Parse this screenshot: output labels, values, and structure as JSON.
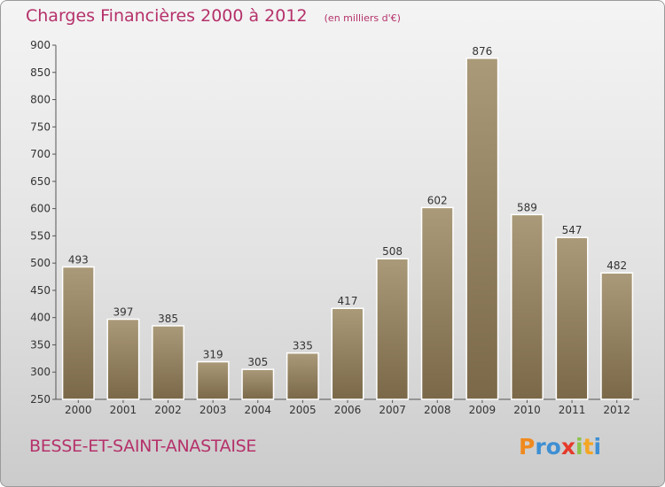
{
  "title": "Charges Financières 2000 à 2012",
  "unit": "(en milliers d'€)",
  "commune": "BESSE-ET-SAINT-ANASTAISE",
  "logo": {
    "letters": [
      "P",
      "r",
      "o",
      "x",
      "i",
      "t",
      "i"
    ],
    "colors": [
      "#f08a1e",
      "#3e8fd3",
      "#3e8fd3",
      "#e53a2a",
      "#8bc34a",
      "#f5a623",
      "#3e8fd3"
    ]
  },
  "colors": {
    "accent": "#b5316a",
    "bar_top": "#aa9a79",
    "bar_bottom": "#7a6848"
  },
  "chart_data": {
    "type": "bar",
    "categories": [
      "2000",
      "2001",
      "2002",
      "2003",
      "2004",
      "2005",
      "2006",
      "2007",
      "2008",
      "2009",
      "2010",
      "2011",
      "2012"
    ],
    "values": [
      493,
      397,
      385,
      319,
      305,
      335,
      417,
      508,
      602,
      876,
      589,
      547,
      482
    ],
    "ylim": [
      250,
      900
    ],
    "yticks": [
      250,
      300,
      350,
      400,
      450,
      500,
      550,
      600,
      650,
      700,
      750,
      800,
      850,
      900
    ],
    "grid": false,
    "legend": "none"
  }
}
